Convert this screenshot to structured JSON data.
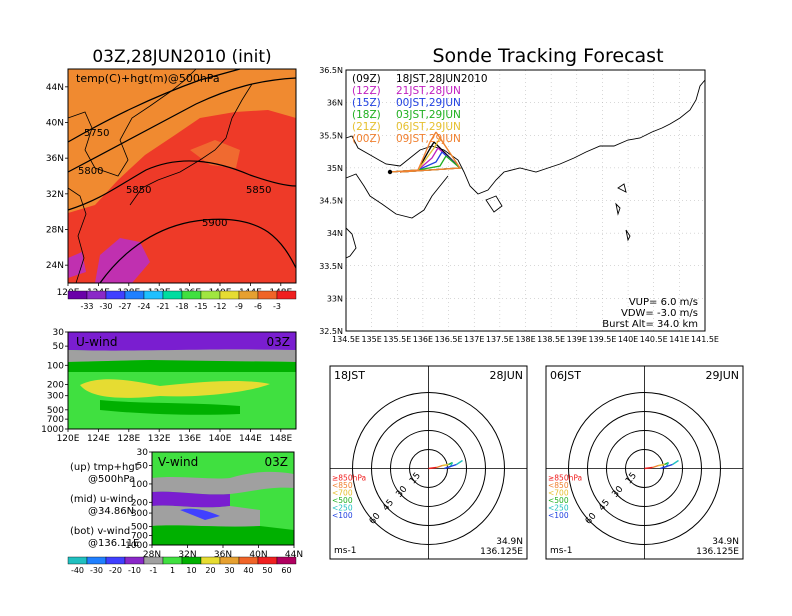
{
  "left_title": "03Z,28JUN2010 (init)",
  "right_title": "Sonde Tracking Forecast",
  "map500": {
    "label": "temp(C)+hgt(m)@500hPa",
    "x_ticks": [
      "120E",
      "124E",
      "128E",
      "132E",
      "136E",
      "140E",
      "144E",
      "148E"
    ],
    "y_ticks": [
      "44N",
      "40N",
      "36N",
      "32N",
      "28N",
      "24N"
    ],
    "contours": [
      "5750",
      "5800",
      "5850",
      "5850",
      "5900"
    ],
    "colorbar": [
      "-33",
      "-30",
      "-27",
      "-24",
      "-21",
      "-18",
      "-15",
      "-12",
      "-9",
      "-6",
      "-3"
    ],
    "colorbar_colors": [
      "#6a00a8",
      "#8a28c8",
      "#4040ff",
      "#2080ff",
      "#20c0ff",
      "#00dca0",
      "#40e040",
      "#a0e640",
      "#e6dc32",
      "#e6a030",
      "#f06428",
      "#f02020"
    ]
  },
  "uwind": {
    "title": "U-wind",
    "time": "03Z",
    "y_ticks": [
      "30",
      "50",
      "100",
      "200",
      "300",
      "500",
      "700",
      "1000"
    ],
    "x_ticks": [
      "120E",
      "124E",
      "128E",
      "132E",
      "136E",
      "140E",
      "144E",
      "148E"
    ]
  },
  "vwind": {
    "title": "V-wind",
    "time": "03Z",
    "y_ticks": [
      "30",
      "50",
      "100",
      "200",
      "300",
      "500",
      "700",
      "1000"
    ],
    "x_ticks": [
      "28N",
      "32N",
      "36N",
      "40N",
      "44N"
    ]
  },
  "legend_lines": [
    {
      "a": "(up)  tmp+hgt",
      "b": "@500hPa"
    },
    {
      "a": "(mid)  u-wind",
      "b": "@34.86N"
    },
    {
      "a": "(bot)  v-wind",
      "b": "@136.11E"
    }
  ],
  "wind_colorbar": {
    "labels": [
      "-40",
      "-30",
      "-20",
      "-10",
      "-1",
      "1",
      "10",
      "20",
      "30",
      "40",
      "50",
      "60"
    ],
    "colors": [
      "#20c0c0",
      "#2080ff",
      "#4040ff",
      "#8a28c8",
      "#a0a0a0",
      "#40e040",
      "#00b000",
      "#e6dc32",
      "#e6a030",
      "#f06428",
      "#f02020",
      "#b00060"
    ]
  },
  "track_map": {
    "x_ticks": [
      "134.5E",
      "135E",
      "135.5E",
      "136E",
      "136.5E",
      "137E",
      "137.5E",
      "138E",
      "138.5E",
      "139E",
      "139.5E",
      "140E",
      "140.5E",
      "141E",
      "141.5E"
    ],
    "y_ticks": [
      "36.5N",
      "36N",
      "35.5N",
      "35N",
      "34.5N",
      "34N",
      "33.5N",
      "33N",
      "32.5N"
    ],
    "launches": [
      {
        "utc": "(09Z)",
        "jst": "18JST,28JUN2010",
        "color": "#000000"
      },
      {
        "utc": "(12Z)",
        "jst": "21JST,28JUN",
        "color": "#c020c0"
      },
      {
        "utc": "(15Z)",
        "jst": "00JST,29JUN",
        "color": "#2040e0"
      },
      {
        "utc": "(18Z)",
        "jst": "03JST,29JUN",
        "color": "#20b020"
      },
      {
        "utc": "(21Z)",
        "jst": "06JST,29JUN",
        "color": "#e6c030"
      },
      {
        "utc": "(00Z)",
        "jst": "09JST,29JUN",
        "color": "#f08030"
      }
    ],
    "vup": "VUP=  6.0  m/s",
    "vdw": "VDW= -3.0  m/s",
    "burst": "Burst Alt=  34.0  km"
  },
  "hodo_left": {
    "time": "18JST",
    "date": "28JUN",
    "unit": "ms-1",
    "lat": "34.9N",
    "lon": "136.125E",
    "rings": [
      "15",
      "30",
      "45",
      "60"
    ]
  },
  "hodo_right": {
    "time": "06JST",
    "date": "29JUN",
    "unit": "ms-1",
    "lat": "34.9N",
    "lon": "136.125E",
    "rings": [
      "15",
      "30",
      "45",
      "60"
    ]
  },
  "hodo_levels": [
    {
      "label": "≥850hPa",
      "color": "#f02020"
    },
    {
      "label": "<850",
      "color": "#f08030"
    },
    {
      "label": "<700",
      "color": "#e6c030"
    },
    {
      "label": "<500",
      "color": "#20b020"
    },
    {
      "label": "<250",
      "color": "#20c0c0"
    },
    {
      "label": "<100",
      "color": "#2040e0"
    }
  ]
}
